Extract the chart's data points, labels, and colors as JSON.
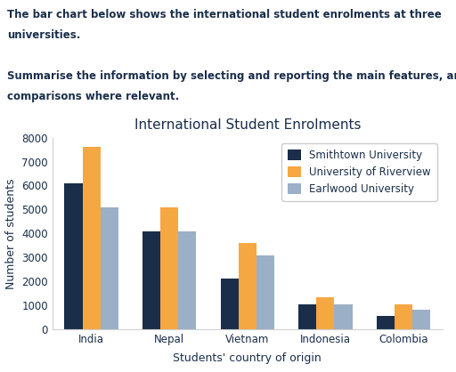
{
  "title": "International Student Enrolments",
  "xlabel": "Students' country of origin",
  "ylabel": "Number of students",
  "categories": [
    "India",
    "Nepal",
    "Vietnam",
    "Indonesia",
    "Colombia"
  ],
  "series": [
    {
      "name": "Smithtown University",
      "color": "#1a2e4a",
      "values": [
        6100,
        4100,
        2100,
        1050,
        550
      ]
    },
    {
      "name": "University of Riverview",
      "color": "#f5a742",
      "values": [
        7600,
        5100,
        3600,
        1350,
        1050
      ]
    },
    {
      "name": "Earlwood University",
      "color": "#9bafc7",
      "values": [
        5100,
        4100,
        3100,
        1050,
        800
      ]
    }
  ],
  "ylim": [
    0,
    8000
  ],
  "yticks": [
    0,
    1000,
    2000,
    3000,
    4000,
    5000,
    6000,
    7000,
    8000
  ],
  "background_color": "#ffffff",
  "title_fontsize": 11,
  "label_fontsize": 9,
  "tick_fontsize": 8.5,
  "legend_fontsize": 8.5,
  "header_color": "#1a2e4a",
  "header_fontsize": 8.5,
  "header_lines": [
    "The bar chart below shows the international student enrolments at three",
    "universities.",
    "",
    "Summarise the information by selecting and reporting the main features, and make",
    "comparisons where relevant."
  ]
}
